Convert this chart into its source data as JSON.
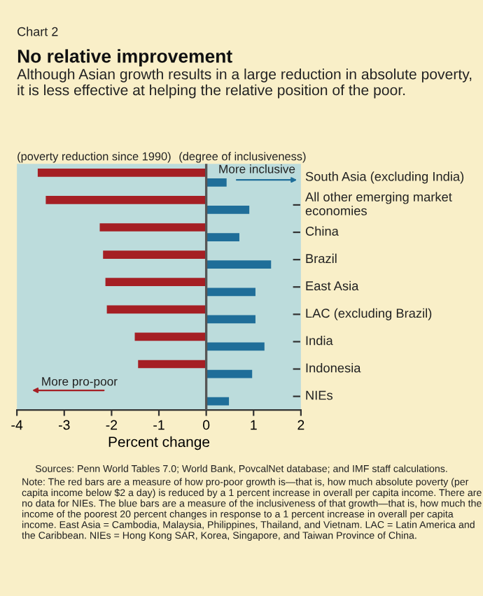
{
  "chart_data": {
    "type": "bar",
    "orientation": "horizontal",
    "title": "No relative improvement",
    "subtitle": "Although Asian growth results in a large reduction in absolute poverty, it is less effective at helping the relative position of the poor.",
    "xlabel": "Percent change",
    "categories": [
      "South Asia (excluding India)",
      "All other emerging market economies",
      "China",
      "Brazil",
      "East Asia",
      "LAC (excluding Brazil)",
      "India",
      "Indonesia",
      "NIEs"
    ],
    "series": [
      {
        "color": "#a51f24",
        "values": [
          -3.56,
          -3.39,
          -2.25,
          -2.18,
          -2.13,
          -2.1,
          -1.51,
          -1.44,
          null
        ]
      },
      {
        "color": "#1f6e99",
        "values": [
          0.43,
          0.91,
          0.7,
          1.37,
          1.04,
          1.04,
          1.23,
          0.97,
          0.48
        ]
      }
    ],
    "xlim": [
      -4,
      2
    ],
    "xticks": [
      -4,
      -3,
      -2,
      -1,
      0,
      1,
      2
    ],
    "grid": false,
    "legend": false,
    "ref_lines": [
      {
        "axis": "x",
        "value": 0,
        "color": "#555555"
      }
    ],
    "annotations": [
      "Chart 2",
      "(poverty reduction since 1990)",
      "(degree of inclusiveness)",
      "More inclusive",
      "More pro-poor",
      "Sources: Penn World Tables 7.0; World Bank, PovcalNet database; and IMF staff calculations.",
      "Note: The red bars are a measure of how pro-poor growth is—that is, how much absolute poverty (per capita income below $2 a day) is reduced by a 1 percent increase in overall per capita income. There are no data for NIEs. The blue bars are a measure of the inclusiveness of that growth—that is, how much the income of the poorest 20 percent changes in response to a 1 percent increase in overall per capita income. East Asia = Cambodia, Malaysia, Philippines, Thailand, and Vietnam. LAC = Latin America and the Caribbean. NIEs = Hong Kong SAR, Korea, Singapore, and Taiwan Province of China."
    ]
  }
}
